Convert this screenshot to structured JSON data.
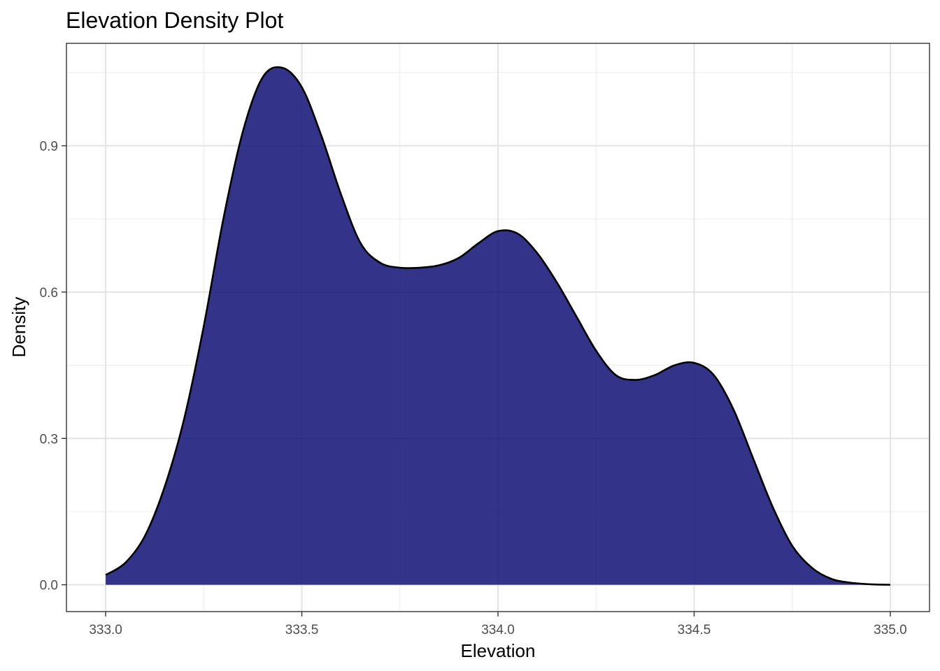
{
  "chart_data": {
    "type": "area",
    "title": "Elevation Density Plot",
    "xlabel": "Elevation",
    "ylabel": "Density",
    "xlim": [
      332.9,
      335.1
    ],
    "ylim": [
      -0.055,
      1.11
    ],
    "x_ticks": [
      333.0,
      333.5,
      334.0,
      334.5,
      335.0
    ],
    "x_tick_labels": [
      "333.0",
      "333.5",
      "334.0",
      "334.5",
      "335.0"
    ],
    "y_ticks": [
      0.0,
      0.3,
      0.6,
      0.9
    ],
    "y_tick_labels": [
      "0.0",
      "0.3",
      "0.6",
      "0.9"
    ],
    "x_minor": [
      333.25,
      333.75,
      334.25,
      334.75
    ],
    "y_minor": [
      0.15,
      0.45,
      0.75,
      1.05
    ],
    "grid": true,
    "fill_color": "#1a1a7a",
    "fill_opacity": 0.89,
    "line_color": "#000000",
    "x": [
      333.0,
      333.05,
      333.1,
      333.15,
      333.2,
      333.25,
      333.3,
      333.35,
      333.4,
      333.45,
      333.5,
      333.55,
      333.6,
      333.65,
      333.7,
      333.75,
      333.8,
      333.85,
      333.9,
      333.95,
      334.0,
      334.05,
      334.1,
      334.15,
      334.2,
      334.25,
      334.3,
      334.35,
      334.4,
      334.45,
      334.5,
      334.55,
      334.6,
      334.65,
      334.7,
      334.75,
      334.8,
      334.85,
      334.9,
      334.95,
      335.0
    ],
    "y": [
      0.02,
      0.045,
      0.1,
      0.2,
      0.34,
      0.53,
      0.75,
      0.93,
      1.04,
      1.06,
      1.02,
      0.92,
      0.8,
      0.7,
      0.66,
      0.65,
      0.65,
      0.655,
      0.67,
      0.7,
      0.725,
      0.72,
      0.68,
      0.62,
      0.55,
      0.48,
      0.43,
      0.42,
      0.43,
      0.45,
      0.455,
      0.43,
      0.36,
      0.26,
      0.16,
      0.08,
      0.035,
      0.012,
      0.004,
      0.001,
      0.0
    ]
  }
}
